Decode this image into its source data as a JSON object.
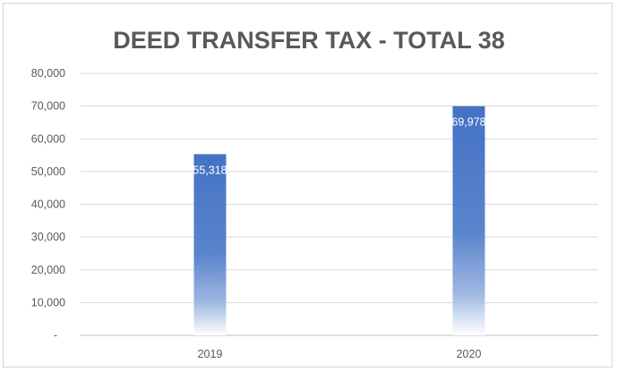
{
  "chart_data": {
    "type": "bar",
    "title": "DEED TRANSFER TAX - TOTAL 38",
    "categories": [
      "2019",
      "2020"
    ],
    "values": [
      55318,
      69978
    ],
    "data_labels": [
      "55,318",
      "69,978"
    ],
    "ylim": [
      0,
      80000
    ],
    "yticks": [
      0,
      10000,
      20000,
      30000,
      40000,
      50000,
      60000,
      70000,
      80000
    ],
    "ytick_labels": [
      "-",
      "10,000",
      "20,000",
      "30,000",
      "40,000",
      "50,000",
      "60,000",
      "70,000",
      "80,000"
    ],
    "xlabel": "",
    "ylabel": "",
    "grid": true,
    "legend": "none",
    "colors": {
      "bar_top": "#4472c4",
      "bar_bottom": "#ffffff",
      "grid": "#d9d9d9",
      "text": "#595959"
    }
  }
}
